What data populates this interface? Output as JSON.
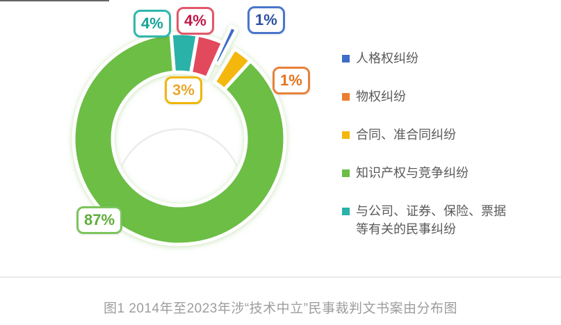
{
  "figure": {
    "caption": "图1 2014年至2023年涉“技术中立”民事裁判文书案由分布图"
  },
  "chart_data": {
    "type": "donut",
    "title": "",
    "values_unit": "percent",
    "start_angle_deg": -4.5,
    "slices": [
      {
        "id": "company-securities",
        "label": "与公司、证券、保险、票据等有关的民事纠纷",
        "value": 4,
        "display": "4%",
        "color": "#29B2A8",
        "callout_border": "#2FB7AC",
        "callout_text": "#13A398"
      },
      {
        "id": "unlabeled-red",
        "label": "",
        "value": 4,
        "display": "4%",
        "color": "#E3485C",
        "callout_border": "#E25669",
        "callout_text": "#C21747"
      },
      {
        "id": "personality-rights",
        "label": "人格权纠纷",
        "value": 1,
        "display": "1%",
        "color": "#3F6CC7",
        "exploded": true,
        "callout_border": "#4A76CB",
        "callout_text": "#2B51A3"
      },
      {
        "id": "property-rights",
        "label": "物权纠纷",
        "value": 1,
        "display": "1%",
        "color": "#ED7D31",
        "hidden_in_ring": true,
        "callout_border": "#E8813A",
        "callout_text": "#E4731C"
      },
      {
        "id": "contract",
        "label": "合同、准合同纠纷",
        "value": 3,
        "display": "3%",
        "color": "#F4B70E",
        "callout_border": "#F1B606",
        "callout_text": "#EAA72E"
      },
      {
        "id": "ip-competition",
        "label": "知识产权与竞争纠纷",
        "value": 87,
        "display": "87%",
        "color": "#6CBE45",
        "callout_border": "#7CC45C",
        "callout_text": "#5EAD3A"
      }
    ],
    "legend": {
      "position": "right",
      "items": [
        {
          "label": "人格权纠纷",
          "color": "#3F6CC7"
        },
        {
          "label": "物权纠纷",
          "color": "#ED7D31"
        },
        {
          "label": "合同、准合同纠纷",
          "color": "#F4B70E"
        },
        {
          "label": "知识产权与竞争纠纷",
          "color": "#6CBE45"
        },
        {
          "label": "与公司、证券、保险、票据等有关的民事纠纷",
          "color": "#29B2A8"
        }
      ]
    }
  }
}
